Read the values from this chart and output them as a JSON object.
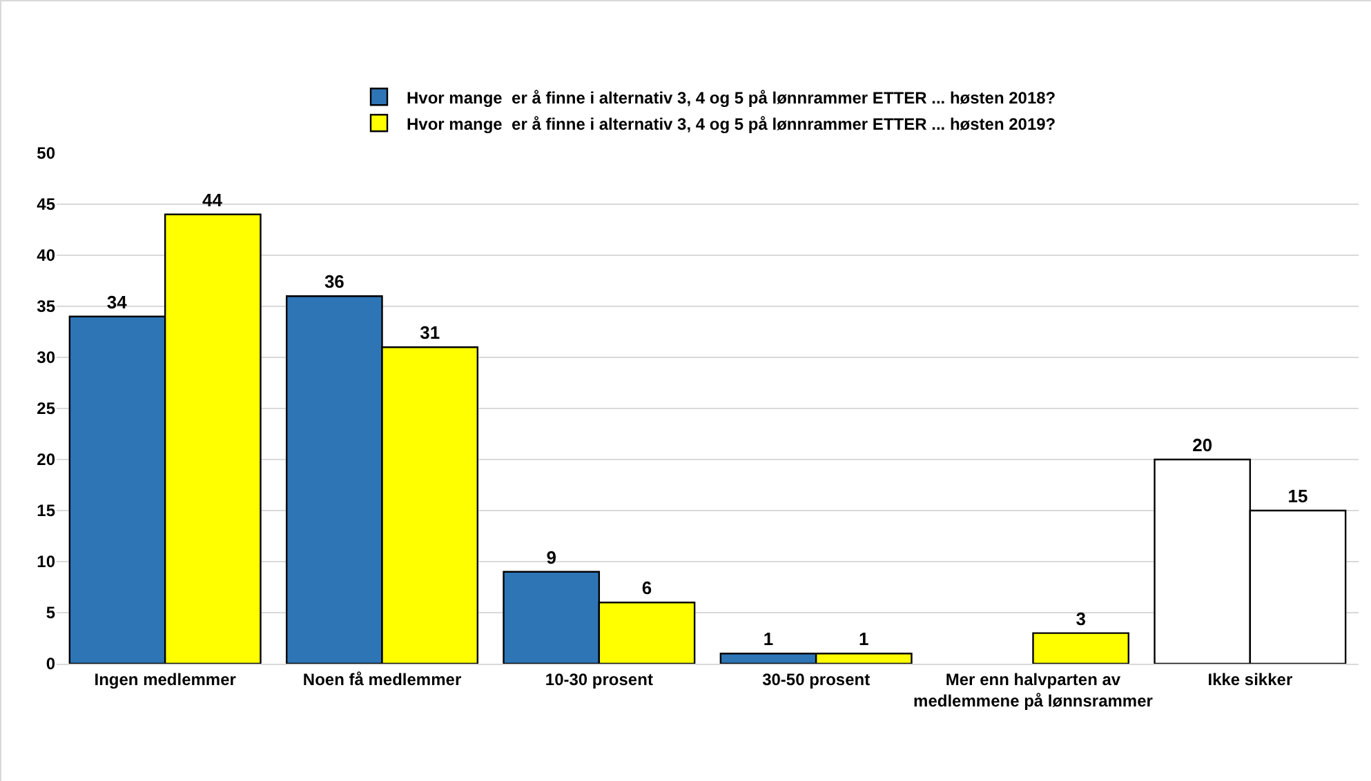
{
  "chart_data": {
    "type": "bar",
    "categories": [
      "Ingen medlemmer",
      "Noen få medlemmer",
      "10-30 prosent",
      "30-50 prosent",
      "Mer enn halvparten av medlemmene på lønnsrammer",
      "Ikke sikker"
    ],
    "series": [
      {
        "name": "Hvor mange  er å finne i alternativ 3, 4 og 5 på lønnrammer ETTER ... høsten 2018?",
        "color": "#2e75b6",
        "colors": [
          null,
          null,
          null,
          null,
          null,
          "#ffffff"
        ],
        "values": [
          34,
          36,
          9,
          1,
          null,
          20
        ]
      },
      {
        "name": "Hvor mange  er å finne i alternativ 3, 4 og 5 på lønnrammer ETTER ... høsten 2019?",
        "color": "#ffff00",
        "colors": [
          null,
          null,
          null,
          null,
          null,
          "#ffffff"
        ],
        "values": [
          44,
          31,
          6,
          1,
          3,
          15
        ]
      }
    ],
    "ylim": [
      0,
      50
    ],
    "yticks": [
      0,
      5,
      10,
      15,
      20,
      25,
      30,
      35,
      40,
      45,
      50
    ],
    "grid": "y",
    "legend": "top",
    "data_labels": true
  }
}
